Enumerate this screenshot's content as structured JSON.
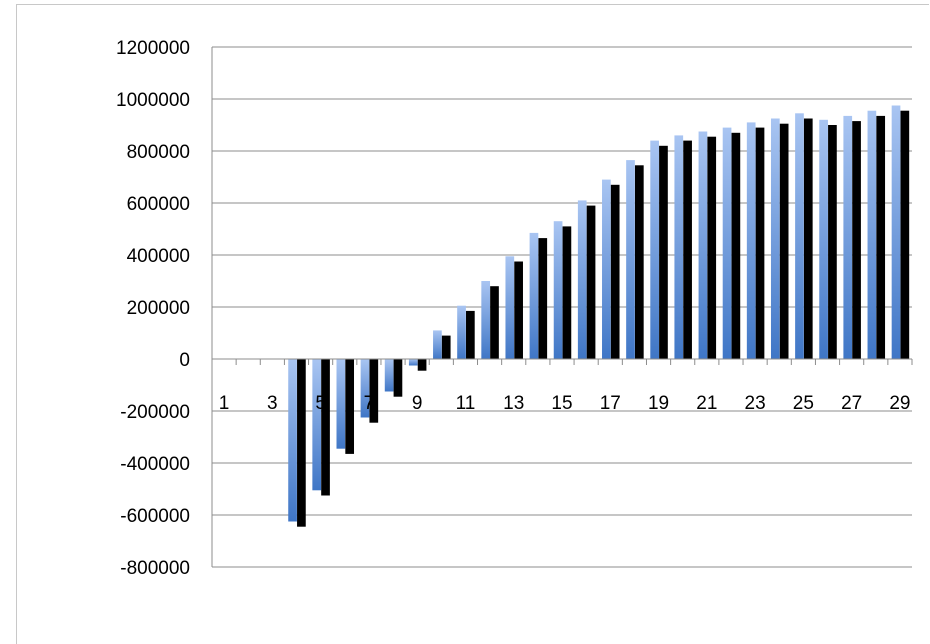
{
  "chart_data": {
    "type": "bar",
    "categories": [
      "1",
      "2",
      "3",
      "4",
      "5",
      "6",
      "7",
      "8",
      "9",
      "10",
      "11",
      "12",
      "13",
      "14",
      "15",
      "16",
      "17",
      "18",
      "19",
      "20",
      "21",
      "22",
      "23",
      "24",
      "25",
      "26",
      "27",
      "28",
      "29"
    ],
    "x_tick_labels": [
      "1",
      "3",
      "5",
      "7",
      "9",
      "11",
      "13",
      "15",
      "17",
      "19",
      "21",
      "23",
      "25",
      "27",
      "29"
    ],
    "y_tick_labels": [
      "1200000",
      "1000000",
      "800000",
      "600000",
      "400000",
      "200000",
      "0",
      "-200000",
      "-400000",
      "-600000",
      "-800000"
    ],
    "ylim": [
      -800000,
      1200000
    ],
    "grid": true,
    "legend": "none",
    "series": [
      {
        "color": "#5b8fd8",
        "values": [
          0,
          0,
          0,
          -625000,
          -505000,
          -345000,
          -225000,
          -125000,
          -25000,
          110000,
          205000,
          300000,
          395000,
          485000,
          530000,
          610000,
          690000,
          765000,
          840000,
          860000,
          875000,
          890000,
          910000,
          925000,
          945000,
          920000,
          935000,
          955000,
          975000
        ]
      },
      {
        "color": "#000000",
        "values": [
          0,
          0,
          0,
          -645000,
          -525000,
          -365000,
          -245000,
          -145000,
          -45000,
          90000,
          185000,
          280000,
          375000,
          465000,
          510000,
          590000,
          670000,
          745000,
          820000,
          840000,
          855000,
          870000,
          890000,
          905000,
          925000,
          900000,
          915000,
          935000,
          955000
        ]
      }
    ]
  }
}
